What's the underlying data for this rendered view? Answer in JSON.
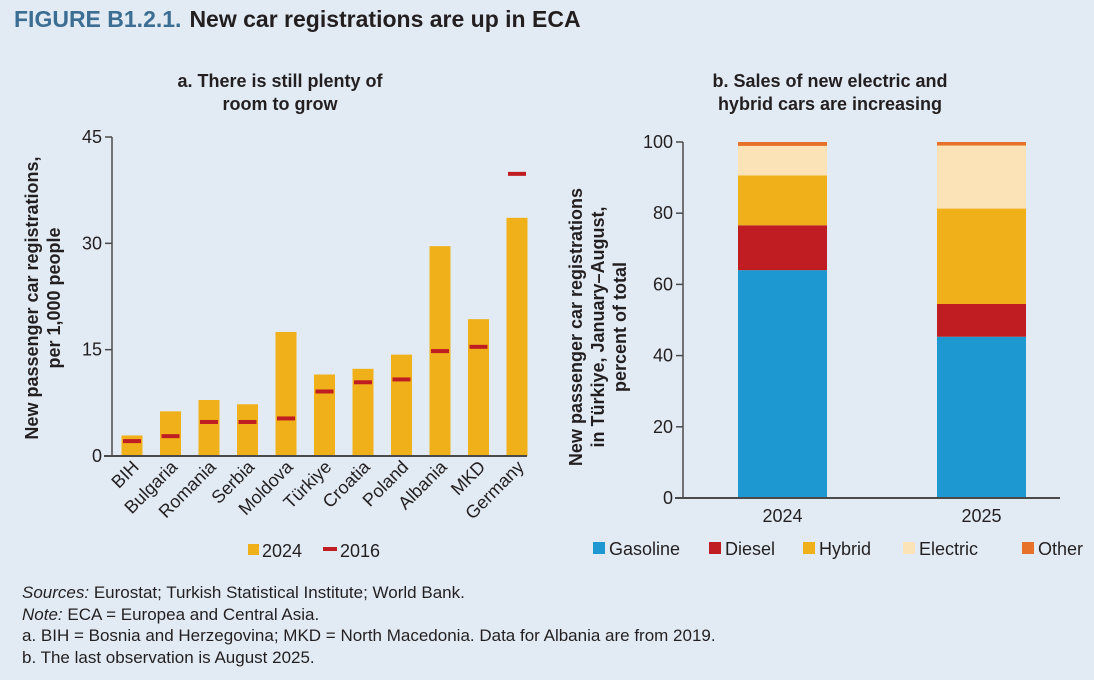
{
  "figure": {
    "number": "FIGURE B1.2.1.",
    "title": "New car registrations are up in ECA"
  },
  "notes": {
    "sources_label": "Sources:",
    "sources_text": " Eurostat; Turkish Statistical Institute; World Bank.",
    "note_label": "Note:",
    "note_text": " ECA = Europea and Central Asia.",
    "note_a": "a. BIH = Bosnia and Herzegovina; MKD = North Macedonia. Data for Albania are from 2019.",
    "note_b": "b. The last observation is August 2025."
  },
  "colors": {
    "bar_2024": "#f0b01a",
    "marker_2016": "#c01d22",
    "gasoline": "#1e98d0",
    "diesel": "#c01d22",
    "hybrid": "#f0b01a",
    "electric": "#fbe3b7",
    "other": "#e8712a",
    "axis": "#4a4a4a"
  },
  "chart_data": [
    {
      "type": "bar",
      "title_line1": "a. There is still plenty of",
      "title_line2": "room to grow",
      "ylabel_line1": "New passenger car registrations,",
      "ylabel_line2": "per 1,000 people",
      "xlabel": "",
      "ylim": [
        0,
        45
      ],
      "yticks": [
        0,
        15,
        30,
        45
      ],
      "grid": false,
      "legend_position": "bottom",
      "categories": [
        "BIH",
        "Bulgaria",
        "Romania",
        "Serbia",
        "Moldova",
        "Türkiye",
        "Croatia",
        "Poland",
        "Albania",
        "MKD",
        "Germany"
      ],
      "series": [
        {
          "name": "2024",
          "kind": "bar",
          "values": [
            2.9,
            6.3,
            7.9,
            7.3,
            17.5,
            11.5,
            12.3,
            14.3,
            29.6,
            19.3,
            33.6
          ]
        },
        {
          "name": "2016",
          "kind": "marker",
          "values": [
            2.1,
            2.8,
            4.8,
            4.8,
            5.3,
            9.1,
            10.4,
            10.8,
            14.8,
            15.4,
            39.8
          ]
        }
      ]
    },
    {
      "type": "bar",
      "stacked": true,
      "title_line1": "b. Sales of new electric and",
      "title_line2": "hybrid cars are increasing",
      "ylabel_line1": "New passenger car registrations",
      "ylabel_line2": "in Türkiye, January–August,",
      "ylabel_line3": "percent of total",
      "xlabel": "",
      "ylim": [
        0,
        100
      ],
      "yticks": [
        0,
        20,
        40,
        60,
        80,
        100
      ],
      "grid": false,
      "legend_position": "bottom",
      "categories": [
        "2024",
        "2025"
      ],
      "series": [
        {
          "name": "Gasoline",
          "values": [
            64.0,
            45.3
          ]
        },
        {
          "name": "Diesel",
          "values": [
            12.6,
            9.2
          ]
        },
        {
          "name": "Hybrid",
          "values": [
            14.0,
            26.8
          ]
        },
        {
          "name": "Electric",
          "values": [
            8.3,
            17.7
          ]
        },
        {
          "name": "Other",
          "values": [
            1.1,
            1.0
          ]
        }
      ]
    }
  ]
}
